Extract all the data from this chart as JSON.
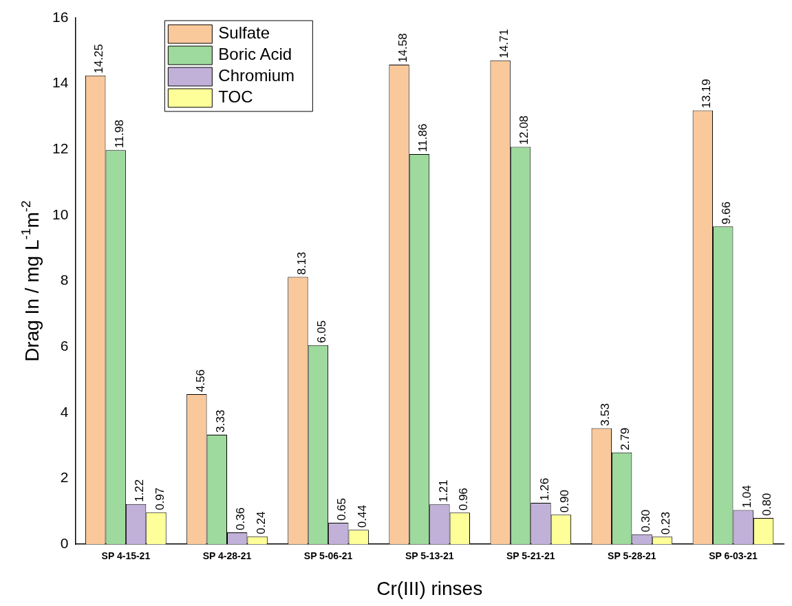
{
  "chart_data": {
    "type": "bar",
    "xlabel": "Cr(III) rinses",
    "ylabel": "Drag In / mg L$^{-1}$m$^{-2}$",
    "categories": [
      "SP 4-15-21",
      "SP 4-28-21",
      "SP 5-06-21",
      "SP 5-13-21",
      "SP 5-21-21",
      "SP 5-28-21",
      "SP 6-03-21"
    ],
    "series": [
      {
        "name": "Sulfate",
        "color": "#f9c89b",
        "values": [
          14.25,
          4.56,
          8.13,
          14.58,
          14.71,
          3.53,
          13.19
        ],
        "value_labels": [
          "14.25",
          "4.56",
          "8.13",
          "14.58",
          "14.71",
          "3.53",
          "13.19"
        ]
      },
      {
        "name": "Boric Acid",
        "color": "#9ed99d",
        "values": [
          11.98,
          3.33,
          6.05,
          11.86,
          12.08,
          2.79,
          9.66
        ],
        "value_labels": [
          "11.98",
          "3.33",
          "6.05",
          "11.86",
          "12.08",
          "2.79",
          "9.66"
        ]
      },
      {
        "name": "Chromium",
        "color": "#c1b1d9",
        "values": [
          1.22,
          0.36,
          0.65,
          1.21,
          1.26,
          0.3,
          1.04
        ],
        "value_labels": [
          "1.22",
          "0.36",
          "0.65",
          "1.21",
          "1.26",
          "0.30",
          "1.04"
        ]
      },
      {
        "name": "TOC",
        "color": "#ffff99",
        "values": [
          0.97,
          0.24,
          0.44,
          0.96,
          0.9,
          0.23,
          0.8
        ],
        "value_labels": [
          "0.97",
          "0.24",
          "0.44",
          "0.96",
          "0.90",
          "0.23",
          "0.80"
        ]
      }
    ],
    "ylim": [
      0,
      16
    ],
    "yticks": [
      0,
      2,
      4,
      6,
      8,
      10,
      12,
      14,
      16
    ],
    "grid": false,
    "legend": "top left"
  }
}
